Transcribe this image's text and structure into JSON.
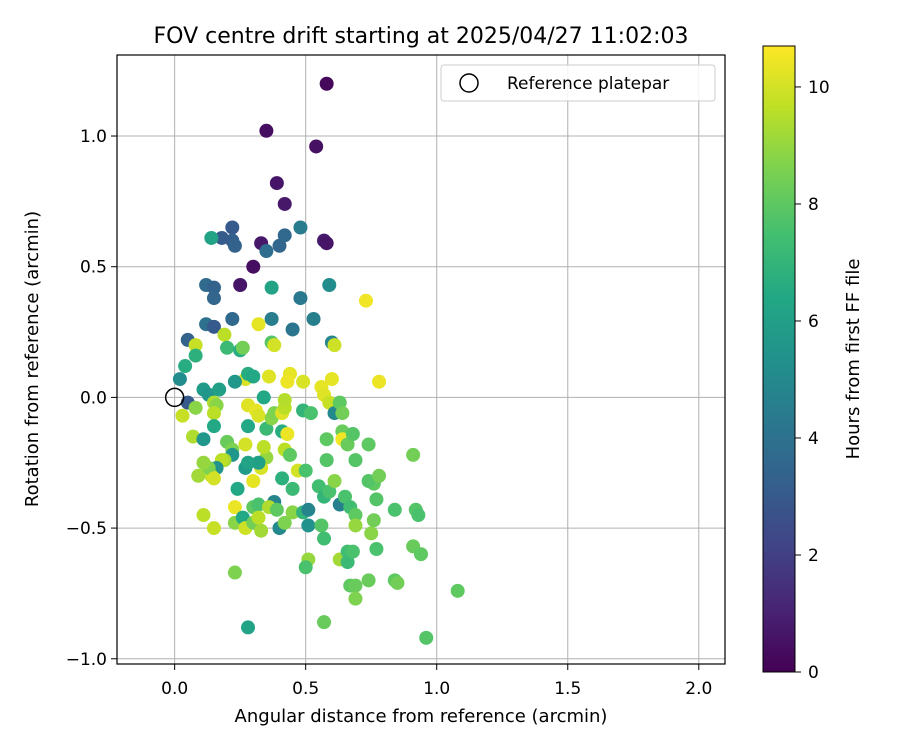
{
  "chart_data": {
    "type": "scatter",
    "title": "FOV centre drift starting at 2025/04/27 11:02:03",
    "xlabel": "Angular distance from reference (arcmin)",
    "ylabel": "Rotation from reference (arcmin)",
    "xlim": [
      -0.22,
      2.1
    ],
    "ylim": [
      -1.02,
      1.31
    ],
    "xticks": [
      0.0,
      0.5,
      1.0,
      1.5,
      2.0
    ],
    "xtick_labels": [
      "0.0",
      "0.5",
      "1.0",
      "1.5",
      "2.0"
    ],
    "yticks": [
      -1.0,
      -0.5,
      0.0,
      0.5,
      1.0
    ],
    "ytick_labels": [
      "−1.0",
      "−0.5",
      "0.0",
      "0.5",
      "1.0"
    ],
    "grid": true,
    "legend": {
      "position": "top-right",
      "label": "Reference platepar"
    },
    "reference_point": {
      "x": 0.0,
      "y": 0.0
    },
    "colorbar": {
      "label": "Hours from first FF file",
      "min": 0,
      "max": 10.7,
      "ticks": [
        0,
        2,
        4,
        6,
        8,
        10
      ],
      "tick_labels": [
        "0",
        "2",
        "4",
        "6",
        "8",
        "10"
      ],
      "colormap": "viridis"
    },
    "points": [
      {
        "x": 0.58,
        "y": 1.2,
        "h": 0.2
      },
      {
        "x": 0.35,
        "y": 1.02,
        "h": 0.4
      },
      {
        "x": 0.54,
        "y": 0.96,
        "h": 0.5
      },
      {
        "x": 0.39,
        "y": 0.82,
        "h": 0.6
      },
      {
        "x": 0.42,
        "y": 0.74,
        "h": 0.7
      },
      {
        "x": 0.57,
        "y": 0.6,
        "h": 0.8
      },
      {
        "x": 0.58,
        "y": 0.59,
        "h": 0.6
      },
      {
        "x": 0.33,
        "y": 0.59,
        "h": 0.7
      },
      {
        "x": 0.3,
        "y": 0.5,
        "h": 0.4
      },
      {
        "x": 0.25,
        "y": 0.43,
        "h": 0.6
      },
      {
        "x": 0.22,
        "y": 0.65,
        "h": 3.0
      },
      {
        "x": 0.22,
        "y": 0.6,
        "h": 3.2
      },
      {
        "x": 0.23,
        "y": 0.58,
        "h": 3.4
      },
      {
        "x": 0.18,
        "y": 0.61,
        "h": 3.1
      },
      {
        "x": 0.14,
        "y": 0.61,
        "h": 6.2
      },
      {
        "x": 0.4,
        "y": 0.58,
        "h": 3.5
      },
      {
        "x": 0.42,
        "y": 0.62,
        "h": 3.6
      },
      {
        "x": 0.48,
        "y": 0.65,
        "h": 4.4
      },
      {
        "x": 0.35,
        "y": 0.56,
        "h": 3.8
      },
      {
        "x": 0.12,
        "y": 0.43,
        "h": 3.7
      },
      {
        "x": 0.15,
        "y": 0.42,
        "h": 3.4
      },
      {
        "x": 0.15,
        "y": 0.38,
        "h": 3.5
      },
      {
        "x": 0.22,
        "y": 0.3,
        "h": 3.6
      },
      {
        "x": 0.37,
        "y": 0.42,
        "h": 6.2
      },
      {
        "x": 0.48,
        "y": 0.38,
        "h": 4.3
      },
      {
        "x": 0.59,
        "y": 0.43,
        "h": 5.2
      },
      {
        "x": 0.53,
        "y": 0.3,
        "h": 4.6
      },
      {
        "x": 0.37,
        "y": 0.3,
        "h": 4.5
      },
      {
        "x": 0.45,
        "y": 0.26,
        "h": 4.2
      },
      {
        "x": 0.12,
        "y": 0.28,
        "h": 4.0
      },
      {
        "x": 0.15,
        "y": 0.27,
        "h": 3.0
      },
      {
        "x": 0.05,
        "y": 0.22,
        "h": 3.4
      },
      {
        "x": 0.19,
        "y": 0.24,
        "h": 9.6
      },
      {
        "x": 0.08,
        "y": 0.2,
        "h": 9.8
      },
      {
        "x": 0.08,
        "y": 0.16,
        "h": 6.8
      },
      {
        "x": 0.04,
        "y": 0.12,
        "h": 6.6
      },
      {
        "x": 0.02,
        "y": 0.07,
        "h": 5.2
      },
      {
        "x": 0.05,
        "y": -0.02,
        "h": 3.0
      },
      {
        "x": 0.03,
        "y": -0.07,
        "h": 9.8
      },
      {
        "x": 0.2,
        "y": 0.19,
        "h": 7.2
      },
      {
        "x": 0.25,
        "y": 0.18,
        "h": 6.6
      },
      {
        "x": 0.26,
        "y": 0.19,
        "h": 8.4
      },
      {
        "x": 0.37,
        "y": 0.21,
        "h": 7.8
      },
      {
        "x": 0.38,
        "y": 0.2,
        "h": 10.0
      },
      {
        "x": 0.32,
        "y": 0.28,
        "h": 10.3
      },
      {
        "x": 0.6,
        "y": 0.21,
        "h": 4.9
      },
      {
        "x": 0.61,
        "y": 0.2,
        "h": 9.9
      },
      {
        "x": 0.73,
        "y": 0.37,
        "h": 10.5
      },
      {
        "x": 0.78,
        "y": 0.06,
        "h": 10.4
      },
      {
        "x": 0.6,
        "y": 0.07,
        "h": 10.3
      },
      {
        "x": 0.56,
        "y": 0.04,
        "h": 10.3
      },
      {
        "x": 0.57,
        "y": 0.01,
        "h": 10.2
      },
      {
        "x": 0.49,
        "y": 0.06,
        "h": 10.1
      },
      {
        "x": 0.44,
        "y": 0.09,
        "h": 10.3
      },
      {
        "x": 0.43,
        "y": 0.06,
        "h": 10.4
      },
      {
        "x": 0.36,
        "y": 0.08,
        "h": 10.2
      },
      {
        "x": 0.27,
        "y": 0.07,
        "h": 10.1
      },
      {
        "x": 0.28,
        "y": 0.09,
        "h": 6.6
      },
      {
        "x": 0.3,
        "y": 0.08,
        "h": 6.4
      },
      {
        "x": 0.23,
        "y": 0.06,
        "h": 5.6
      },
      {
        "x": 0.11,
        "y": 0.03,
        "h": 5.8
      },
      {
        "x": 0.13,
        "y": 0.01,
        "h": 5.6
      },
      {
        "x": 0.17,
        "y": 0.03,
        "h": 6.0
      },
      {
        "x": 0.15,
        "y": -0.02,
        "h": 9.4
      },
      {
        "x": 0.16,
        "y": -0.03,
        "h": 8.8
      },
      {
        "x": 0.08,
        "y": -0.04,
        "h": 8.8
      },
      {
        "x": 0.15,
        "y": -0.06,
        "h": 9.6
      },
      {
        "x": 0.15,
        "y": -0.11,
        "h": 6.4
      },
      {
        "x": 0.07,
        "y": -0.15,
        "h": 9.4
      },
      {
        "x": 0.11,
        "y": -0.16,
        "h": 5.6
      },
      {
        "x": 0.2,
        "y": -0.17,
        "h": 8.2
      },
      {
        "x": 0.22,
        "y": -0.2,
        "h": 8.6
      },
      {
        "x": 0.27,
        "y": -0.18,
        "h": 10.0
      },
      {
        "x": 0.28,
        "y": -0.11,
        "h": 6.4
      },
      {
        "x": 0.28,
        "y": -0.03,
        "h": 10.2
      },
      {
        "x": 0.31,
        "y": -0.05,
        "h": 10.3
      },
      {
        "x": 0.32,
        "y": -0.07,
        "h": 10.1
      },
      {
        "x": 0.34,
        "y": 0.0,
        "h": 6.4
      },
      {
        "x": 0.35,
        "y": -0.12,
        "h": 7.2
      },
      {
        "x": 0.37,
        "y": -0.08,
        "h": 8.8
      },
      {
        "x": 0.38,
        "y": -0.06,
        "h": 8.6
      },
      {
        "x": 0.41,
        "y": -0.06,
        "h": 10.2
      },
      {
        "x": 0.42,
        "y": -0.04,
        "h": 9.6
      },
      {
        "x": 0.42,
        "y": -0.01,
        "h": 9.5
      },
      {
        "x": 0.41,
        "y": -0.13,
        "h": 6.6
      },
      {
        "x": 0.43,
        "y": -0.14,
        "h": 10.4
      },
      {
        "x": 0.42,
        "y": -0.2,
        "h": 9.6
      },
      {
        "x": 0.44,
        "y": -0.22,
        "h": 8.0
      },
      {
        "x": 0.47,
        "y": -0.28,
        "h": 10.0
      },
      {
        "x": 0.49,
        "y": -0.05,
        "h": 7.0
      },
      {
        "x": 0.52,
        "y": -0.06,
        "h": 7.6
      },
      {
        "x": 0.59,
        "y": -0.02,
        "h": 9.8
      },
      {
        "x": 0.58,
        "y": -0.16,
        "h": 8.0
      },
      {
        "x": 0.61,
        "y": -0.06,
        "h": 5.0
      },
      {
        "x": 0.63,
        "y": -0.02,
        "h": 8.0
      },
      {
        "x": 0.64,
        "y": -0.06,
        "h": 8.4
      },
      {
        "x": 0.64,
        "y": -0.13,
        "h": 8.2
      },
      {
        "x": 0.64,
        "y": -0.16,
        "h": 10.5
      },
      {
        "x": 0.66,
        "y": -0.18,
        "h": 8.2
      },
      {
        "x": 0.68,
        "y": -0.14,
        "h": 7.8
      },
      {
        "x": 0.69,
        "y": -0.24,
        "h": 7.8
      },
      {
        "x": 0.74,
        "y": -0.18,
        "h": 8.0
      },
      {
        "x": 0.58,
        "y": -0.24,
        "h": 7.8
      },
      {
        "x": 0.5,
        "y": -0.28,
        "h": 7.6
      },
      {
        "x": 0.45,
        "y": -0.35,
        "h": 7.2
      },
      {
        "x": 0.41,
        "y": -0.31,
        "h": 6.8
      },
      {
        "x": 0.38,
        "y": -0.4,
        "h": 4.8
      },
      {
        "x": 0.35,
        "y": -0.23,
        "h": 9.0
      },
      {
        "x": 0.34,
        "y": -0.19,
        "h": 9.6
      },
      {
        "x": 0.33,
        "y": -0.27,
        "h": 10.1
      },
      {
        "x": 0.32,
        "y": -0.25,
        "h": 6.0
      },
      {
        "x": 0.3,
        "y": -0.32,
        "h": 10.3
      },
      {
        "x": 0.27,
        "y": -0.27,
        "h": 5.8
      },
      {
        "x": 0.28,
        "y": -0.25,
        "h": 6.2
      },
      {
        "x": 0.24,
        "y": -0.35,
        "h": 6.4
      },
      {
        "x": 0.23,
        "y": -0.42,
        "h": 10.4
      },
      {
        "x": 0.22,
        "y": -0.22,
        "h": 5.6
      },
      {
        "x": 0.19,
        "y": -0.24,
        "h": 9.2
      },
      {
        "x": 0.18,
        "y": -0.24,
        "h": 9.6
      },
      {
        "x": 0.16,
        "y": -0.27,
        "h": 5.4
      },
      {
        "x": 0.14,
        "y": -0.3,
        "h": 9.8
      },
      {
        "x": 0.13,
        "y": -0.27,
        "h": 8.6
      },
      {
        "x": 0.11,
        "y": -0.25,
        "h": 9.0
      },
      {
        "x": 0.09,
        "y": -0.3,
        "h": 9.2
      },
      {
        "x": 0.15,
        "y": -0.31,
        "h": 10.0
      },
      {
        "x": 0.15,
        "y": -0.5,
        "h": 9.8
      },
      {
        "x": 0.11,
        "y": -0.45,
        "h": 9.6
      },
      {
        "x": 0.23,
        "y": -0.48,
        "h": 8.8
      },
      {
        "x": 0.26,
        "y": -0.46,
        "h": 6.4
      },
      {
        "x": 0.27,
        "y": -0.5,
        "h": 9.9
      },
      {
        "x": 0.3,
        "y": -0.48,
        "h": 8.4
      },
      {
        "x": 0.3,
        "y": -0.42,
        "h": 8.0
      },
      {
        "x": 0.32,
        "y": -0.41,
        "h": 7.6
      },
      {
        "x": 0.32,
        "y": -0.46,
        "h": 9.6
      },
      {
        "x": 0.33,
        "y": -0.51,
        "h": 9.2
      },
      {
        "x": 0.36,
        "y": -0.42,
        "h": 9.4
      },
      {
        "x": 0.39,
        "y": -0.43,
        "h": 8.0
      },
      {
        "x": 0.4,
        "y": -0.5,
        "h": 5.0
      },
      {
        "x": 0.42,
        "y": -0.48,
        "h": 8.6
      },
      {
        "x": 0.45,
        "y": -0.44,
        "h": 8.8
      },
      {
        "x": 0.49,
        "y": -0.44,
        "h": 7.0
      },
      {
        "x": 0.51,
        "y": -0.49,
        "h": 5.4
      },
      {
        "x": 0.51,
        "y": -0.43,
        "h": 4.8
      },
      {
        "x": 0.55,
        "y": -0.34,
        "h": 7.4
      },
      {
        "x": 0.57,
        "y": -0.38,
        "h": 7.0
      },
      {
        "x": 0.59,
        "y": -0.36,
        "h": 7.6
      },
      {
        "x": 0.61,
        "y": -0.32,
        "h": 8.8
      },
      {
        "x": 0.63,
        "y": -0.41,
        "h": 4.6
      },
      {
        "x": 0.65,
        "y": -0.38,
        "h": 7.6
      },
      {
        "x": 0.67,
        "y": -0.42,
        "h": 7.4
      },
      {
        "x": 0.69,
        "y": -0.45,
        "h": 8.0
      },
      {
        "x": 0.69,
        "y": -0.49,
        "h": 9.0
      },
      {
        "x": 0.56,
        "y": -0.49,
        "h": 7.8
      },
      {
        "x": 0.57,
        "y": -0.54,
        "h": 7.4
      },
      {
        "x": 0.51,
        "y": -0.62,
        "h": 9.0
      },
      {
        "x": 0.5,
        "y": -0.65,
        "h": 7.6
      },
      {
        "x": 0.63,
        "y": -0.62,
        "h": 9.2
      },
      {
        "x": 0.66,
        "y": -0.59,
        "h": 7.4
      },
      {
        "x": 0.66,
        "y": -0.63,
        "h": 7.2
      },
      {
        "x": 0.68,
        "y": -0.59,
        "h": 7.6
      },
      {
        "x": 0.67,
        "y": -0.72,
        "h": 8.0
      },
      {
        "x": 0.69,
        "y": -0.72,
        "h": 8.2
      },
      {
        "x": 0.69,
        "y": -0.77,
        "h": 8.6
      },
      {
        "x": 0.74,
        "y": -0.7,
        "h": 8.2
      },
      {
        "x": 0.75,
        "y": -0.52,
        "h": 8.8
      },
      {
        "x": 0.77,
        "y": -0.58,
        "h": 7.6
      },
      {
        "x": 0.76,
        "y": -0.47,
        "h": 8.4
      },
      {
        "x": 0.77,
        "y": -0.39,
        "h": 7.8
      },
      {
        "x": 0.76,
        "y": -0.33,
        "h": 8.0
      },
      {
        "x": 0.74,
        "y": -0.32,
        "h": 7.8
      },
      {
        "x": 0.78,
        "y": -0.3,
        "h": 8.4
      },
      {
        "x": 0.84,
        "y": -0.43,
        "h": 7.6
      },
      {
        "x": 0.84,
        "y": -0.7,
        "h": 8.0
      },
      {
        "x": 0.85,
        "y": -0.71,
        "h": 8.4
      },
      {
        "x": 0.91,
        "y": -0.57,
        "h": 8.2
      },
      {
        "x": 0.91,
        "y": -0.22,
        "h": 8.4
      },
      {
        "x": 0.92,
        "y": -0.43,
        "h": 7.8
      },
      {
        "x": 0.93,
        "y": -0.45,
        "h": 7.6
      },
      {
        "x": 0.94,
        "y": -0.6,
        "h": 8.0
      },
      {
        "x": 0.96,
        "y": -0.92,
        "h": 7.8
      },
      {
        "x": 1.08,
        "y": -0.74,
        "h": 8.0
      },
      {
        "x": 0.57,
        "y": -0.86,
        "h": 8.2
      },
      {
        "x": 0.28,
        "y": -0.88,
        "h": 6.2
      },
      {
        "x": 0.23,
        "y": -0.67,
        "h": 8.6
      }
    ]
  }
}
